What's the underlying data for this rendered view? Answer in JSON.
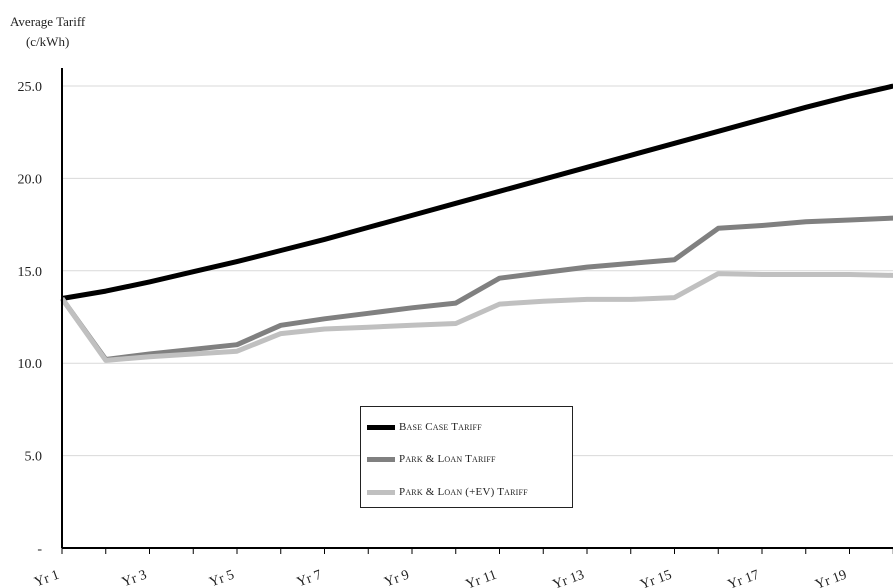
{
  "chart_data": {
    "type": "line",
    "ylabel_line1": "Average Tariff",
    "ylabel_line2": "(c/kWh)",
    "xlabel": "",
    "ylim": [
      0,
      25
    ],
    "yticks": [
      "-",
      "5.0",
      "10.0",
      "15.0",
      "20.0",
      "25.0"
    ],
    "ytick_values": [
      0,
      5,
      10,
      15,
      20,
      25
    ],
    "x_tick_labels": [
      "Yr 1",
      "Yr 3",
      "Yr 5",
      "Yr 7",
      "Yr 9",
      "Yr 11",
      "Yr 13",
      "Yr 15",
      "Yr 17",
      "Yr 19"
    ],
    "x": [
      1,
      2,
      3,
      4,
      5,
      6,
      7,
      8,
      9,
      10,
      11,
      12,
      13,
      14,
      15,
      16,
      17,
      18,
      19,
      20
    ],
    "grid": "horizontal",
    "legend_position": "lower-center",
    "series": [
      {
        "name": "Base Case Tariff",
        "color": "#000000",
        "values": [
          13.5,
          13.9,
          14.4,
          14.95,
          15.5,
          16.1,
          16.7,
          17.35,
          18.0,
          18.65,
          19.3,
          19.95,
          20.6,
          21.25,
          21.9,
          22.55,
          23.2,
          23.85,
          24.45,
          25.0
        ]
      },
      {
        "name": "Park & Loan Tariff",
        "color": "#808080",
        "values": [
          13.5,
          10.2,
          10.5,
          10.75,
          11.0,
          12.05,
          12.4,
          12.7,
          13.0,
          13.25,
          14.6,
          14.9,
          15.2,
          15.4,
          15.6,
          17.3,
          17.45,
          17.65,
          17.75,
          17.85
        ]
      },
      {
        "name": "Park & Loan (+EV) Tariff",
        "color": "#c0c0c0",
        "values": [
          13.5,
          10.15,
          10.35,
          10.5,
          10.65,
          11.6,
          11.85,
          11.95,
          12.05,
          12.15,
          13.2,
          13.35,
          13.45,
          13.45,
          13.55,
          14.85,
          14.8,
          14.8,
          14.8,
          14.75
        ]
      }
    ]
  }
}
